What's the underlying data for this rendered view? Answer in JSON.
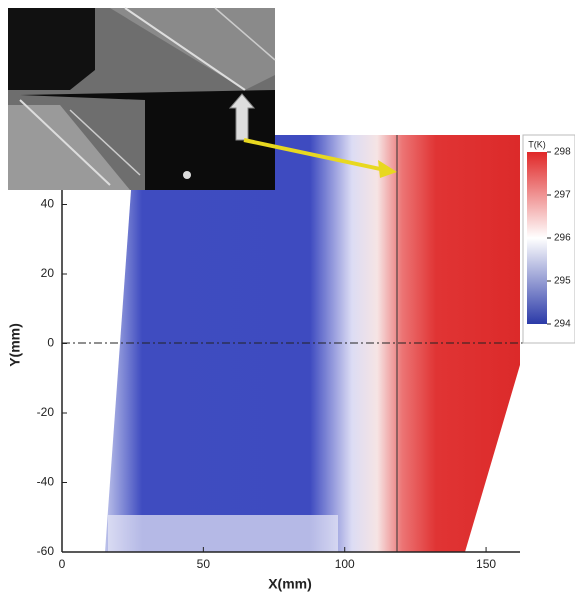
{
  "chart_data": {
    "type": "heatmap",
    "x_label": "X(mm)",
    "y_label": "Y(mm)",
    "xlim": [
      0,
      162
    ],
    "ylim": [
      -60,
      60
    ],
    "xticks": [
      0,
      50,
      100,
      150
    ],
    "yticks": [
      -60,
      -40,
      -20,
      0,
      20,
      40
    ],
    "colorbar": {
      "label": "T(K)",
      "clim": [
        294,
        298
      ],
      "ticks": [
        294,
        295,
        296,
        297,
        298
      ],
      "colors": [
        "#2b3aa8",
        "#ffffff",
        "#e02828"
      ]
    }
  }
}
